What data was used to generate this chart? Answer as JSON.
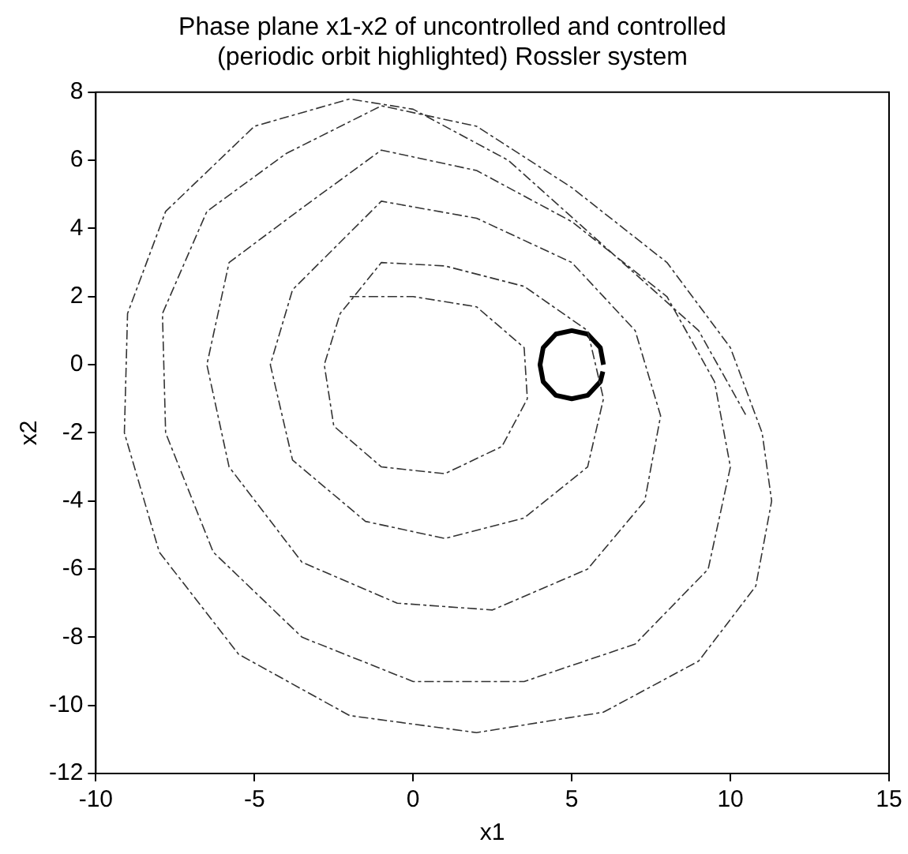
{
  "chart_data": {
    "type": "line",
    "title": "Phase plane x1-x2 of uncontrolled and controlled\n(periodic orbit highlighted) Rossler system",
    "xlabel": "x1",
    "ylabel": "x2",
    "xlim": [
      -10,
      15
    ],
    "xticks": [
      -10,
      -5,
      0,
      5,
      10,
      15
    ],
    "ylim": [
      -12,
      8
    ],
    "yticks": [
      -12,
      -10,
      -8,
      -6,
      -4,
      -2,
      0,
      2,
      4,
      6,
      8
    ],
    "grid": false,
    "legend": false,
    "marker": "none",
    "series": [
      {
        "color": "#333333",
        "line_style": "dashed",
        "x": [
          -2,
          0,
          2,
          3.5,
          3.6,
          2.8,
          1,
          -1,
          -2.5,
          -2.8,
          -2.3,
          -1,
          1,
          3.5,
          5.5,
          6,
          5.5,
          3.5,
          1,
          -1.5,
          -3.8,
          -4.5,
          -3.8,
          -1,
          2,
          5,
          7,
          7.8,
          7.3,
          5.5,
          2.5,
          -0.5,
          -3.5,
          -5.8,
          -6.5,
          -5.8,
          -3.5,
          -1,
          2,
          5,
          8,
          9.5,
          10,
          9.3,
          7,
          3.5,
          0,
          -3.5,
          -6.3,
          -7.8,
          -7.9,
          -6.5,
          -4,
          -1,
          2,
          5,
          8,
          10,
          11,
          11.3,
          10.8,
          9,
          6,
          2,
          -2,
          -5.5,
          -8,
          -9.1,
          -9,
          -7.8,
          -5,
          -2,
          0,
          3,
          6,
          9,
          10.5
        ],
        "values": [
          2,
          2,
          1.7,
          0.5,
          -1,
          -2.4,
          -3.2,
          -3,
          -1.8,
          0,
          1.5,
          3,
          2.9,
          2.3,
          1,
          -1,
          -3,
          -4.5,
          -5.1,
          -4.6,
          -2.8,
          0,
          2.2,
          4.8,
          4.3,
          3,
          1,
          -1.5,
          -4,
          -6,
          -7.2,
          -7,
          -5.8,
          -3,
          0,
          3,
          4.6,
          6.3,
          5.7,
          4.2,
          2,
          -0.5,
          -3,
          -6,
          -8.2,
          -9.3,
          -9.3,
          -8,
          -5.5,
          -2,
          1.5,
          4.5,
          6.2,
          7.6,
          7,
          5.2,
          3,
          0.5,
          -2,
          -4,
          -6.5,
          -8.7,
          -10.2,
          -10.8,
          -10.3,
          -8.5,
          -5.5,
          -2,
          1.5,
          4.5,
          7,
          7.8,
          7.5,
          6,
          3.5,
          1,
          -1.5
        ]
      },
      {
        "color": "#000000",
        "line_style": "solid",
        "x": [
          6,
          5.9,
          5.5,
          5,
          4.5,
          4.1,
          4,
          4.1,
          4.5,
          5,
          5.5,
          5.9,
          5.98
        ],
        "values": [
          0,
          0.5,
          0.9,
          1,
          0.9,
          0.5,
          0,
          -0.5,
          -0.9,
          -1,
          -0.9,
          -0.5,
          -0.2
        ]
      }
    ]
  }
}
